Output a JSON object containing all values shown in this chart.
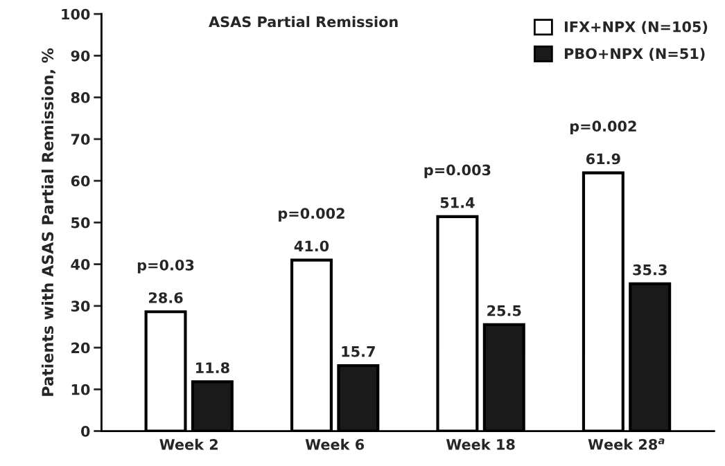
{
  "chart_data": {
    "type": "bar",
    "title": "ASAS Partial Remission",
    "ylabel": "Patients with ASAS Partial Remission, %",
    "categories": [
      "Week 2",
      "Week 6",
      "Week 18",
      "Week 28$^{a}$"
    ],
    "series": [
      {
        "name": "IFX+NPX (N=105)",
        "color": "#ffffff",
        "values": [
          28.6,
          41.0,
          51.4,
          61.9
        ],
        "value_labels": [
          "28.6",
          "41.0",
          "51.4",
          "61.9"
        ]
      },
      {
        "name": "PBO+NPX (N=51)",
        "color": "#1a1a1a",
        "values": [
          11.8,
          15.7,
          25.5,
          35.3
        ],
        "value_labels": [
          "11.8",
          "15.7",
          "25.5",
          "35.3"
        ]
      }
    ],
    "annotations": [
      "p=0.03",
      "p=0.002",
      "p=0.003",
      "p=0.002"
    ],
    "ylim": [
      0,
      100
    ],
    "yticks": [
      0,
      10,
      20,
      30,
      40,
      50,
      60,
      70,
      80,
      90,
      100
    ],
    "grid": false,
    "legend": "top right"
  }
}
